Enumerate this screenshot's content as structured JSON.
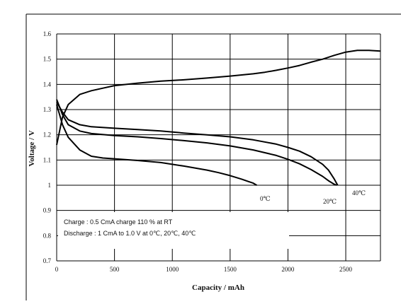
{
  "chart_data": {
    "type": "line",
    "xlabel": "Capacity / mAh",
    "ylabel": "Voltage / V",
    "xlim": [
      0,
      2800
    ],
    "ylim": [
      0.7,
      1.6
    ],
    "x_ticks": [
      0,
      500,
      1000,
      1500,
      2000,
      2500
    ],
    "y_ticks": [
      0.7,
      0.8,
      0.9,
      1,
      1.1,
      1.2,
      1.3,
      1.4,
      1.5,
      1.6
    ],
    "grid": true,
    "notes": [
      "Charge : 0.5 CmA charge 110 % at RT",
      "Discharge : 1 CmA to 1.0 V at 0℃, 20℃, 40℃"
    ],
    "series": [
      {
        "name": "Charge",
        "x": [
          0,
          50,
          100,
          200,
          300,
          400,
          500,
          700,
          900,
          1100,
          1300,
          1500,
          1700,
          1800,
          1900,
          2000,
          2100,
          2200,
          2300,
          2400,
          2500,
          2600,
          2700,
          2800
        ],
        "y": [
          1.16,
          1.27,
          1.32,
          1.36,
          1.375,
          1.385,
          1.395,
          1.405,
          1.413,
          1.418,
          1.425,
          1.433,
          1.442,
          1.448,
          1.456,
          1.465,
          1.475,
          1.488,
          1.5,
          1.515,
          1.528,
          1.535,
          1.535,
          1.532
        ]
      },
      {
        "name": "0℃",
        "x": [
          0,
          50,
          100,
          200,
          300,
          400,
          500,
          700,
          900,
          1100,
          1300,
          1400,
          1500,
          1600,
          1650,
          1700,
          1730
        ],
        "y": [
          1.32,
          1.24,
          1.19,
          1.14,
          1.115,
          1.108,
          1.105,
          1.098,
          1.09,
          1.076,
          1.06,
          1.05,
          1.038,
          1.024,
          1.016,
          1.008,
          1.0
        ]
      },
      {
        "name": "20℃",
        "x": [
          0,
          50,
          100,
          200,
          300,
          500,
          700,
          900,
          1100,
          1300,
          1500,
          1700,
          1900,
          2000,
          2100,
          2200,
          2300,
          2350,
          2400,
          2420
        ],
        "y": [
          1.34,
          1.28,
          1.24,
          1.215,
          1.205,
          1.197,
          1.192,
          1.185,
          1.177,
          1.168,
          1.156,
          1.14,
          1.118,
          1.103,
          1.085,
          1.062,
          1.035,
          1.018,
          1.004,
          1.0
        ]
      },
      {
        "name": "40℃",
        "x": [
          0,
          50,
          100,
          200,
          300,
          500,
          700,
          900,
          1100,
          1300,
          1500,
          1700,
          1900,
          2000,
          2100,
          2200,
          2300,
          2350,
          2400,
          2430
        ],
        "y": [
          1.33,
          1.29,
          1.26,
          1.24,
          1.232,
          1.226,
          1.221,
          1.215,
          1.207,
          1.2,
          1.192,
          1.18,
          1.163,
          1.15,
          1.135,
          1.113,
          1.083,
          1.06,
          1.025,
          1.0
        ]
      }
    ],
    "curve_labels": [
      "0℃",
      "20℃",
      "40℃"
    ]
  }
}
